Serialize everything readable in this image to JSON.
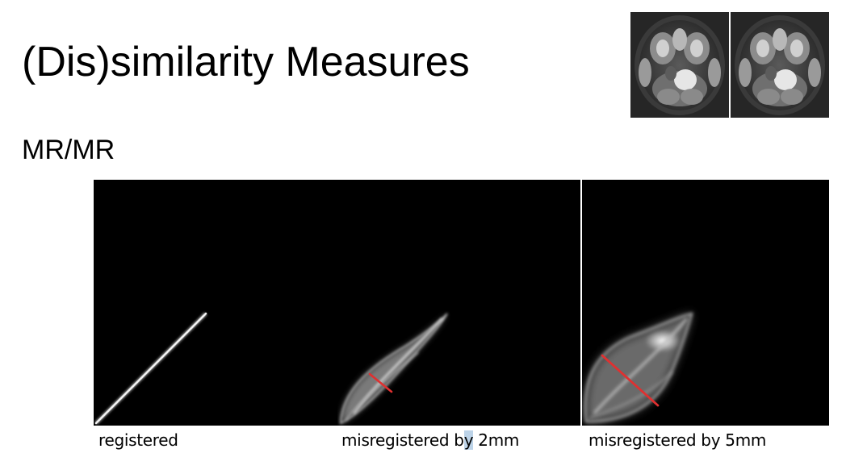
{
  "slide": {
    "title": "(Dis)similarity Measures",
    "subtitle": "MR/MR"
  },
  "panels": [
    {
      "caption": "registered"
    },
    {
      "caption_pre": "misregistered b",
      "caption_hl": "y",
      "caption_post": " 2mm"
    },
    {
      "caption": "misregistered by 5mm"
    }
  ],
  "colors": {
    "background": "#ffffff",
    "text": "#000000",
    "plot_background": "#000000",
    "annotation_line": "#e03030",
    "selection_highlight": "#bcd3e8"
  }
}
